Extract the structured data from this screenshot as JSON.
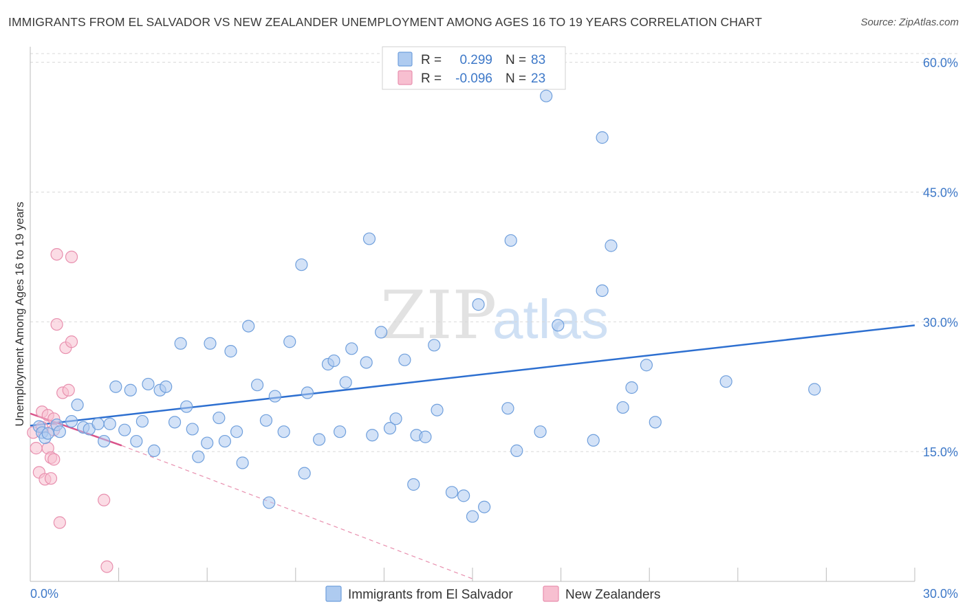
{
  "title": "IMMIGRANTS FROM EL SALVADOR VS NEW ZEALANDER UNEMPLOYMENT AMONG AGES 16 TO 19 YEARS CORRELATION CHART",
  "source": "Source: ZipAtlas.com",
  "watermark": {
    "zip": "ZIP",
    "atlas": "atlas"
  },
  "colors": {
    "blue_fill": "#aecbf0",
    "blue_stroke": "#6f9fdc",
    "blue_line": "#2d6fd0",
    "pink_fill": "#f7bfd0",
    "pink_stroke": "#e88fae",
    "pink_line": "#d9538a",
    "grid": "#d8d8d8",
    "tick_text": "#3d78c8"
  },
  "legend": {
    "r_label": "R =",
    "n_label": "N =",
    "rows": [
      {
        "series": "blue",
        "r": "0.299",
        "n": "83"
      },
      {
        "series": "pink",
        "r": "-0.096",
        "n": "23"
      }
    ]
  },
  "chart_data": {
    "type": "scatter",
    "title": "IMMIGRANTS FROM EL SALVADOR VS NEW ZEALANDER UNEMPLOYMENT AMONG AGES 16 TO 19 YEARS CORRELATION CHART",
    "xlabel": "",
    "ylabel": "Unemployment Among Ages 16 to 19 years",
    "xlim": [
      0,
      30
    ],
    "ylim": [
      0,
      61
    ],
    "x_tick_labels": [
      "0.0%",
      "30.0%"
    ],
    "y_ticks": [
      15,
      30,
      45,
      60
    ],
    "y_tick_labels": [
      "15.0%",
      "30.0%",
      "45.0%",
      "60.0%"
    ],
    "grid": "horizontal dashed",
    "legend_position": "bottom",
    "series": [
      {
        "name": "Immigrants from El Salvador",
        "color": "blue",
        "trend": {
          "x": [
            0,
            30
          ],
          "y": [
            18.0,
            29.6
          ]
        },
        "points": [
          [
            0.3,
            17.9
          ],
          [
            0.4,
            17.2
          ],
          [
            0.5,
            16.6
          ],
          [
            0.6,
            17.1
          ],
          [
            0.9,
            18.1
          ],
          [
            1.0,
            17.3
          ],
          [
            1.4,
            18.5
          ],
          [
            1.6,
            20.4
          ],
          [
            1.8,
            17.8
          ],
          [
            2.0,
            17.6
          ],
          [
            2.3,
            18.2
          ],
          [
            2.5,
            16.2
          ],
          [
            2.7,
            18.2
          ],
          [
            2.9,
            22.5
          ],
          [
            3.2,
            17.5
          ],
          [
            3.4,
            22.1
          ],
          [
            3.6,
            16.2
          ],
          [
            3.8,
            18.5
          ],
          [
            4.0,
            22.8
          ],
          [
            4.2,
            15.1
          ],
          [
            4.4,
            22.1
          ],
          [
            4.6,
            22.5
          ],
          [
            4.9,
            18.4
          ],
          [
            5.1,
            27.5
          ],
          [
            5.3,
            20.2
          ],
          [
            5.5,
            17.6
          ],
          [
            5.7,
            14.4
          ],
          [
            6.0,
            16.0
          ],
          [
            6.1,
            27.5
          ],
          [
            6.4,
            18.9
          ],
          [
            6.6,
            16.2
          ],
          [
            6.8,
            26.6
          ],
          [
            7.0,
            17.3
          ],
          [
            7.2,
            13.7
          ],
          [
            7.4,
            29.5
          ],
          [
            7.7,
            22.7
          ],
          [
            8.0,
            18.6
          ],
          [
            8.1,
            9.1
          ],
          [
            8.3,
            21.4
          ],
          [
            8.6,
            17.3
          ],
          [
            8.8,
            27.7
          ],
          [
            9.2,
            36.6
          ],
          [
            9.3,
            12.5
          ],
          [
            9.4,
            21.8
          ],
          [
            9.8,
            16.4
          ],
          [
            10.1,
            25.1
          ],
          [
            10.3,
            25.5
          ],
          [
            10.5,
            17.3
          ],
          [
            10.7,
            23.0
          ],
          [
            10.9,
            26.9
          ],
          [
            11.4,
            25.3
          ],
          [
            11.6,
            16.9
          ],
          [
            11.5,
            39.6
          ],
          [
            11.9,
            28.8
          ],
          [
            12.2,
            17.7
          ],
          [
            12.4,
            18.8
          ],
          [
            12.7,
            25.6
          ],
          [
            13.0,
            11.2
          ],
          [
            13.1,
            16.9
          ],
          [
            13.4,
            16.7
          ],
          [
            13.7,
            27.3
          ],
          [
            13.8,
            19.8
          ],
          [
            14.3,
            10.3
          ],
          [
            14.7,
            9.9
          ],
          [
            15.0,
            7.5
          ],
          [
            15.2,
            32.0
          ],
          [
            15.4,
            8.6
          ],
          [
            16.2,
            20.0
          ],
          [
            16.3,
            39.4
          ],
          [
            16.5,
            15.1
          ],
          [
            17.3,
            17.3
          ],
          [
            17.5,
            56.1
          ],
          [
            17.9,
            29.6
          ],
          [
            19.1,
            16.3
          ],
          [
            19.4,
            33.6
          ],
          [
            19.4,
            51.3
          ],
          [
            19.7,
            38.8
          ],
          [
            20.1,
            20.1
          ],
          [
            20.4,
            22.4
          ],
          [
            20.9,
            25.0
          ],
          [
            21.2,
            18.4
          ],
          [
            23.6,
            23.1
          ],
          [
            26.6,
            22.2
          ]
        ]
      },
      {
        "name": "New Zealanders",
        "color": "pink",
        "trend": {
          "x": [
            0,
            3.1
          ],
          "y": [
            19.4,
            15.7
          ]
        },
        "trend_dashed": {
          "x": [
            3.1,
            15.0
          ],
          "y": [
            15.7,
            0.3
          ]
        },
        "points": [
          [
            0.2,
            15.4
          ],
          [
            0.3,
            12.6
          ],
          [
            0.4,
            17.8
          ],
          [
            0.4,
            19.6
          ],
          [
            0.5,
            11.8
          ],
          [
            0.6,
            19.2
          ],
          [
            0.6,
            15.4
          ],
          [
            0.7,
            11.9
          ],
          [
            0.7,
            14.3
          ],
          [
            0.8,
            18.8
          ],
          [
            0.8,
            14.1
          ],
          [
            0.8,
            17.5
          ],
          [
            0.9,
            37.8
          ],
          [
            0.9,
            29.7
          ],
          [
            1.0,
            6.8
          ],
          [
            1.1,
            21.8
          ],
          [
            1.2,
            27.0
          ],
          [
            1.3,
            22.1
          ],
          [
            1.4,
            37.5
          ],
          [
            1.4,
            27.7
          ],
          [
            2.5,
            9.4
          ],
          [
            2.6,
            1.7
          ],
          [
            0.1,
            17.2
          ]
        ]
      }
    ]
  },
  "bottom_legend": [
    {
      "series": "blue",
      "label": "Immigrants from El Salvador"
    },
    {
      "series": "pink",
      "label": "New Zealanders"
    }
  ]
}
